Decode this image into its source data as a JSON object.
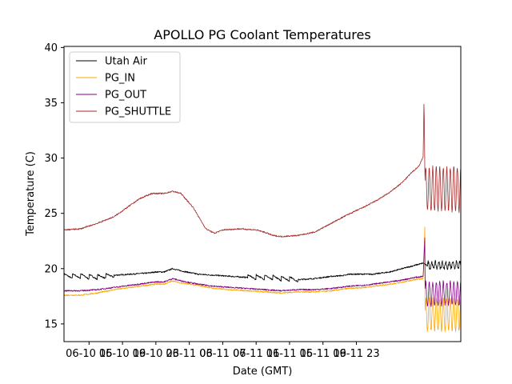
{
  "chart_data": {
    "type": "line",
    "title": "APOLLO PG Coolant Temperatures",
    "xlabel": "Date (GMT)",
    "ylabel": "Temperature (C)",
    "xlim": [
      12.0,
      59.5
    ],
    "ylim": [
      13.4,
      40.1
    ],
    "yticks": [
      15,
      20,
      25,
      30,
      35,
      40
    ],
    "xticks": [
      {
        "t": 15,
        "label": "06-10 15"
      },
      {
        "t": 19,
        "label": "06-10 19"
      },
      {
        "t": 23,
        "label": "06-10 23"
      },
      {
        "t": 27,
        "label": "06-11 03"
      },
      {
        "t": 31,
        "label": "06-11 07"
      },
      {
        "t": 35,
        "label": "06-11 11"
      },
      {
        "t": 39,
        "label": "06-11 15"
      },
      {
        "t": 43,
        "label": "06-11 19"
      },
      {
        "t": 47,
        "label": "06-11 23"
      }
    ],
    "legend_position": "top-left",
    "grid": false,
    "series": [
      {
        "name": "Utah Air",
        "color": "#000000",
        "x": [
          12.0,
          14.0,
          16.0,
          18.0,
          20.0,
          22.0,
          23.0,
          24.0,
          25.0,
          26.0,
          28.0,
          30.0,
          32.0,
          34.0,
          36.0,
          38.0,
          40.0,
          42.0,
          44.0,
          45.8,
          46.0,
          47.0,
          48.0,
          49.0,
          50.0,
          51.0,
          52.0,
          53.0,
          54.0,
          55.0,
          56.0,
          57.0,
          58.0,
          59.5
        ],
        "values": [
          19.3,
          19.3,
          19.2,
          19.4,
          19.5,
          19.6,
          19.7,
          19.7,
          20.0,
          19.8,
          19.5,
          19.4,
          19.3,
          19.2,
          19.2,
          19.1,
          19.0,
          19.1,
          19.3,
          19.4,
          19.5,
          19.5,
          19.5,
          19.5,
          19.6,
          19.7,
          19.9,
          20.1,
          20.3,
          20.5,
          20.0,
          20.2,
          20.3,
          20.4
        ]
      },
      {
        "name": "PG_IN",
        "color": "#ffa500",
        "x": [
          12.0,
          14.0,
          16.0,
          18.0,
          20.0,
          22.0,
          23.0,
          24.0,
          25.0,
          26.0,
          28.0,
          30.0,
          32.0,
          34.0,
          36.0,
          38.0,
          40.0,
          42.0,
          44.0,
          46.0,
          48.0,
          50.0,
          52.0,
          54.0,
          55.0,
          55.2,
          55.5,
          56.0,
          57.0,
          58.0,
          59.5
        ],
        "values": [
          17.6,
          17.6,
          17.8,
          18.1,
          18.3,
          18.5,
          18.6,
          18.6,
          18.9,
          18.7,
          18.5,
          18.2,
          18.1,
          18.0,
          17.9,
          17.8,
          17.9,
          17.9,
          18.0,
          18.2,
          18.3,
          18.5,
          18.7,
          19.0,
          19.1,
          24.0,
          16.0,
          15.8,
          15.5,
          15.5,
          15.5
        ]
      },
      {
        "name": "PG_OUT",
        "color": "#800080",
        "x": [
          12.0,
          14.0,
          16.0,
          18.0,
          20.0,
          22.0,
          23.0,
          24.0,
          25.0,
          26.0,
          28.0,
          30.0,
          32.0,
          34.0,
          36.0,
          38.0,
          40.0,
          42.0,
          44.0,
          46.0,
          48.0,
          50.0,
          52.0,
          54.0,
          55.0,
          55.2,
          55.5,
          56.0,
          57.0,
          58.0,
          59.5
        ],
        "values": [
          18.0,
          18.0,
          18.1,
          18.3,
          18.5,
          18.7,
          18.8,
          18.8,
          19.1,
          18.9,
          18.6,
          18.4,
          18.3,
          18.2,
          18.1,
          18.0,
          18.1,
          18.1,
          18.2,
          18.4,
          18.5,
          18.7,
          18.9,
          19.2,
          19.3,
          23.0,
          17.2,
          17.1,
          17.0,
          17.0,
          17.0
        ]
      },
      {
        "name": "PG_SHUTTLE",
        "color": "#a52a2a",
        "x": [
          12.0,
          14.0,
          16.0,
          18.0,
          19.5,
          21.0,
          22.5,
          24.0,
          25.0,
          26.0,
          27.5,
          28.5,
          29.0,
          30.0,
          31.0,
          33.0,
          35.0,
          36.0,
          37.0,
          38.0,
          40.0,
          42.0,
          44.0,
          46.0,
          48.0,
          49.5,
          51.0,
          52.5,
          53.5,
          54.5,
          55.0,
          55.1,
          55.2,
          55.4,
          55.6,
          56.0,
          57.0,
          58.0,
          59.5
        ],
        "values": [
          23.5,
          23.6,
          24.1,
          24.7,
          25.5,
          26.3,
          26.8,
          26.8,
          27.0,
          26.8,
          25.5,
          24.2,
          23.6,
          23.2,
          23.5,
          23.6,
          23.5,
          23.3,
          23.0,
          22.9,
          23.0,
          23.3,
          24.1,
          24.9,
          25.6,
          26.2,
          26.9,
          27.8,
          28.6,
          29.3,
          30.1,
          35.5,
          28.5,
          27.5,
          27.0,
          27.0,
          27.0,
          27.0,
          27.0
        ]
      }
    ],
    "oscillation_note_hidden": "",
    "oscillations": [
      {
        "series": "PG_SHUTTLE",
        "t_start": 55.2,
        "t_end": 59.5,
        "low": 25.2,
        "high": 29.2
      },
      {
        "series": "PG_OUT",
        "t_start": 55.2,
        "t_end": 59.5,
        "low": 16.7,
        "high": 18.8
      },
      {
        "series": "PG_IN",
        "t_start": 55.2,
        "t_end": 59.5,
        "low": 14.4,
        "high": 17.3
      },
      {
        "series": "Utah Air",
        "t_start": 55.5,
        "t_end": 59.5,
        "low": 20.0,
        "high": 20.6
      }
    ]
  }
}
